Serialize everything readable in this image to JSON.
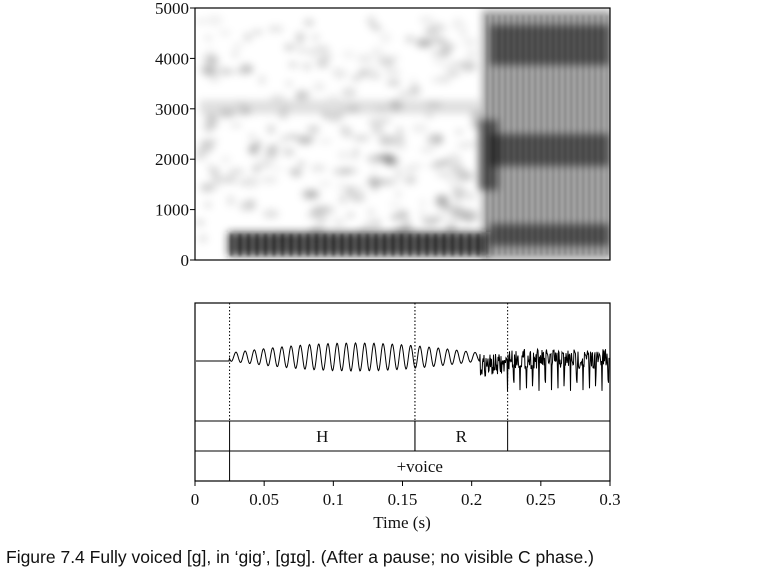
{
  "figure": {
    "spectrogram": {
      "ylim": [
        0,
        5000
      ],
      "yticks": [
        0,
        1000,
        2000,
        3000,
        4000,
        5000
      ]
    },
    "xlim": [
      0,
      0.3
    ],
    "xticks": [
      0,
      0.05,
      0.1,
      0.15,
      0.2,
      0.25,
      0.3
    ],
    "xlabel": "Time (s)",
    "tiers": [
      {
        "intervals": [
          {
            "start": 0.025,
            "end": 0.159,
            "label": "H"
          },
          {
            "start": 0.159,
            "end": 0.226,
            "label": "R"
          }
        ]
      },
      {
        "intervals": [
          {
            "start": 0.025,
            "end": 0.3,
            "label": "+voice"
          }
        ]
      }
    ],
    "caption": "Figure 7.4  Fully voiced [g], in ‘gig’, [gɪg]. (After a pause; no visible C phase.)"
  }
}
